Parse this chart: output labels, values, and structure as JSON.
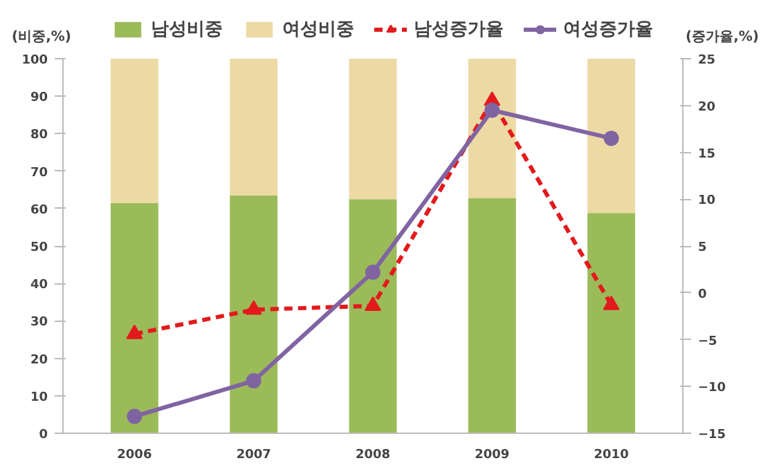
{
  "chart_data": {
    "type": "bar",
    "stacked": true,
    "categories": [
      "2006",
      "2007",
      "2008",
      "2009",
      "2010"
    ],
    "ylabel": "(비중,%)",
    "y2label": "(증가율,%)",
    "ylim": [
      0,
      100
    ],
    "yticks": [
      0,
      10,
      20,
      30,
      40,
      50,
      60,
      70,
      80,
      90,
      100
    ],
    "y2lim": [
      -15,
      25
    ],
    "y2ticks": [
      -15,
      -10,
      -5,
      0,
      5,
      10,
      15,
      20,
      25
    ],
    "grid": false,
    "legend": "top",
    "series": [
      {
        "name": "남성비중",
        "color": "#9bbb59",
        "values": [
          61.5,
          63.5,
          62.5,
          62.8,
          58.8
        ]
      },
      {
        "name": "여성비중",
        "color": "#ecd9a4",
        "values": [
          38.5,
          36.5,
          37.5,
          37.2,
          41.2
        ]
      },
      {
        "name": "남성증가율",
        "type": "line",
        "axis": "y2",
        "color": "#e31a1c",
        "marker": "triangle",
        "line_style": "dashed",
        "values": [
          -4.4,
          -1.8,
          -1.4,
          20.5,
          -1.3
        ]
      },
      {
        "name": "여성증가율",
        "type": "line",
        "axis": "y2",
        "color": "#8064a2",
        "marker": "circle",
        "line_style": "solid",
        "values": [
          -13.2,
          -9.4,
          2.2,
          19.5,
          16.5
        ]
      }
    ]
  }
}
